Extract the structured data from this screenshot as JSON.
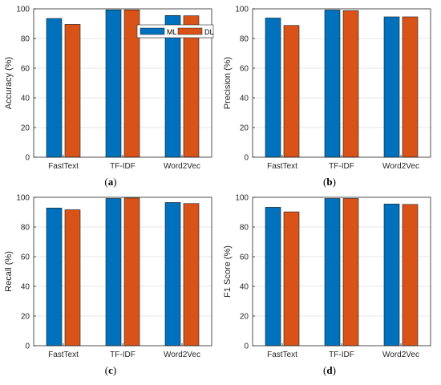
{
  "legend": {
    "position": "top-right",
    "entries": [
      "ML",
      "DL"
    ]
  },
  "colors": {
    "ML": "#0072BD",
    "DL": "#D95319"
  },
  "chart_data": [
    {
      "type": "bar",
      "panel": "(a)",
      "caption_letter": "a",
      "categories": [
        "FastText",
        "TF-IDF",
        "Word2Vec"
      ],
      "series": [
        {
          "name": "ML",
          "values": [
            93.5,
            99.3,
            95.5
          ]
        },
        {
          "name": "DL",
          "values": [
            89.5,
            99.3,
            95.3
          ]
        }
      ],
      "xlabel": "",
      "ylabel": "Accuracy (%)",
      "ylim": [
        0,
        100
      ],
      "yticks": [
        0,
        20,
        40,
        60,
        80,
        100
      ],
      "grid": true,
      "legend": true
    },
    {
      "type": "bar",
      "panel": "(b)",
      "caption_letter": "b",
      "categories": [
        "FastText",
        "TF-IDF",
        "Word2Vec"
      ],
      "series": [
        {
          "name": "ML",
          "values": [
            93.8,
            99.2,
            94.6
          ]
        },
        {
          "name": "DL",
          "values": [
            88.8,
            98.8,
            94.6
          ]
        }
      ],
      "xlabel": "",
      "ylabel": "Precision (%)",
      "ylim": [
        0,
        100
      ],
      "yticks": [
        0,
        20,
        40,
        60,
        80,
        100
      ],
      "grid": true,
      "legend": false
    },
    {
      "type": "bar",
      "panel": "(c)",
      "caption_letter": "c",
      "categories": [
        "FastText",
        "TF-IDF",
        "Word2Vec"
      ],
      "series": [
        {
          "name": "ML",
          "values": [
            92.8,
            99.2,
            96.5
          ]
        },
        {
          "name": "DL",
          "values": [
            91.6,
            99.5,
            95.8
          ]
        }
      ],
      "xlabel": "",
      "ylabel": "Recall (%)",
      "ylim": [
        0,
        100
      ],
      "yticks": [
        0,
        20,
        40,
        60,
        80,
        100
      ],
      "grid": true,
      "legend": false
    },
    {
      "type": "bar",
      "panel": "(d)",
      "caption_letter": "d",
      "categories": [
        "FastText",
        "TF-IDF",
        "Word2Vec"
      ],
      "series": [
        {
          "name": "ML",
          "values": [
            93.3,
            99.2,
            95.5
          ]
        },
        {
          "name": "DL",
          "values": [
            90.2,
            99.2,
            95.2
          ]
        }
      ],
      "xlabel": "",
      "ylabel": "F1 Score (%)",
      "ylim": [
        0,
        100
      ],
      "yticks": [
        0,
        20,
        40,
        60,
        80,
        100
      ],
      "grid": true,
      "legend": false
    }
  ]
}
